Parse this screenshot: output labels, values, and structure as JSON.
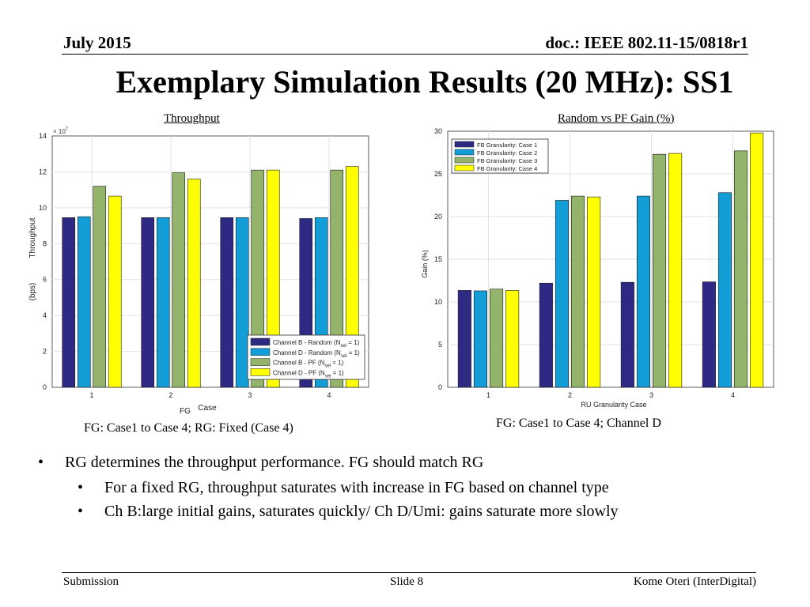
{
  "header": {
    "date": "July 2015",
    "doc": "doc.: IEEE 802.11-15/0818r1"
  },
  "title": "Exemplary Simulation Results (20 MHz): SS1",
  "bullets": [
    "RG determines the throughput performance. FG should match RG",
    "For a fixed RG, throughput saturates with increase in FG based on channel type",
    "Ch B:large initial gains, saturates quickly/ Ch D/Umi: gains saturate more slowly"
  ],
  "bullet_glyph": "•",
  "footer": {
    "left": "Submission",
    "center": "Slide 8",
    "right": "Kome Oteri (InterDigital)"
  },
  "colors": {
    "series": [
      "#2e2a84",
      "#139dd7",
      "#93b46a",
      "#ffff00"
    ]
  },
  "chart_data": [
    {
      "type": "bar",
      "title": "Throughput",
      "caption": "FG: Case1 to Case 4; RG: Fixed (Case 4)",
      "categories": [
        "1",
        "2",
        "3",
        "4"
      ],
      "series": [
        {
          "name_parts": [
            "Channel B - Random (N",
            "sel",
            " = 1)"
          ],
          "values": [
            9.45,
            9.45,
            9.45,
            9.4
          ]
        },
        {
          "name_parts": [
            "Channel D - Random (N",
            "sel",
            " = 1)"
          ],
          "values": [
            9.5,
            9.45,
            9.45,
            9.45
          ]
        },
        {
          "name_parts": [
            "Channel B - PF (N",
            "sel",
            " = 1)"
          ],
          "values": [
            11.2,
            11.95,
            12.1,
            12.1
          ]
        },
        {
          "name_parts": [
            "Channel D - PF (N",
            "sel",
            " = 1)"
          ],
          "values": [
            10.65,
            11.6,
            12.1,
            12.3
          ]
        }
      ],
      "yticks": [
        "0",
        "2",
        "4",
        "6",
        "8",
        "10",
        "12",
        "14"
      ],
      "ylim": [
        0,
        14
      ],
      "yscale_label": "× 10",
      "yscale_exp": "7",
      "xlabel": "Case",
      "xlabel_prefix": "FG",
      "ylabel": "Throughput",
      "ylabel_unit": "(bps)",
      "grid": true,
      "legend": "bottom-right"
    },
    {
      "type": "bar",
      "title": "Random vs PF Gain  (%)",
      "caption": "FG: Case1 to Case 4; Channel D",
      "categories": [
        "1",
        "2",
        "3",
        "4"
      ],
      "series": [
        {
          "name": "FB Granularity: Case 1",
          "values": [
            11.35,
            12.2,
            12.3,
            12.35
          ]
        },
        {
          "name": "FB Granularity: Case 2",
          "values": [
            11.3,
            21.9,
            22.4,
            22.8
          ]
        },
        {
          "name": "FB Granularity: Case 3",
          "values": [
            11.5,
            22.4,
            27.3,
            27.7
          ]
        },
        {
          "name": "FB Granularity: Case 4",
          "values": [
            11.35,
            22.3,
            27.4,
            29.8
          ]
        }
      ],
      "yticks": [
        "0",
        "5",
        "10",
        "15",
        "20",
        "25",
        "30"
      ],
      "ylim": [
        0,
        30
      ],
      "xlabel": "RU Granularity Case",
      "ylabel": "Gain (%)",
      "grid": true,
      "legend": "top-left"
    }
  ]
}
